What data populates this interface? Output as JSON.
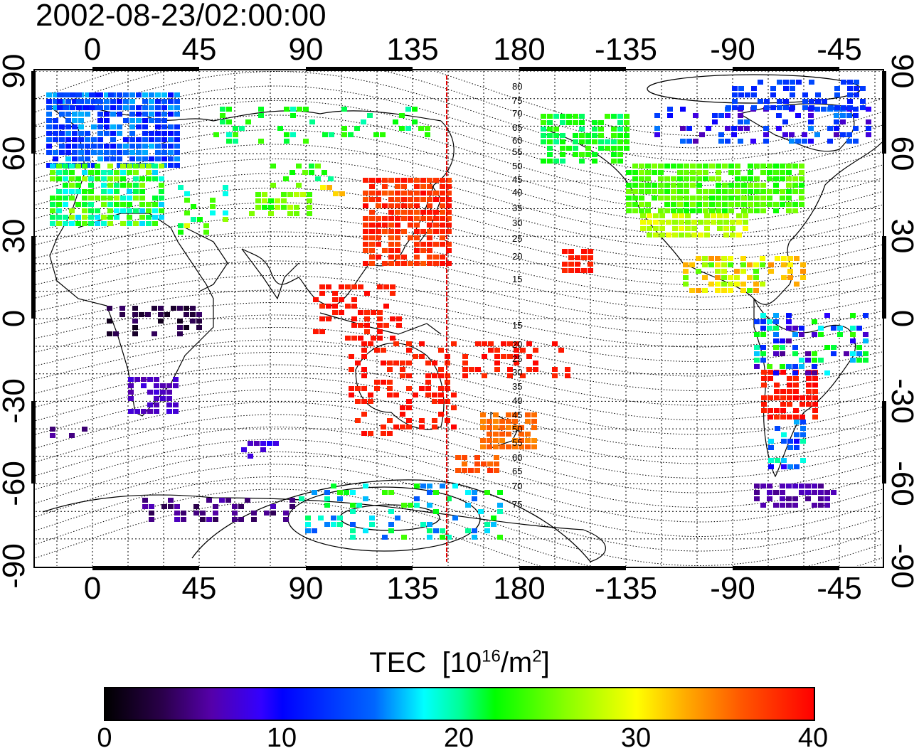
{
  "title": "2002-08-23/02:00:00",
  "x_ticks": [
    "0",
    "45",
    "90",
    "135",
    "180",
    "-135",
    "-90",
    "-45"
  ],
  "y_ticks": [
    "90",
    "60",
    "30",
    "0",
    "-30",
    "-60",
    "-90"
  ],
  "contour_labels_north": [
    "80",
    "75",
    "70",
    "65",
    "60",
    "55",
    "50",
    "45",
    "40",
    "35",
    "30",
    "25",
    "20",
    "15"
  ],
  "contour_labels_south": [
    "15",
    "20",
    "25",
    "30",
    "35",
    "40",
    "45",
    "50",
    "55",
    "60",
    "65",
    "70",
    "75"
  ],
  "colorbar": {
    "title": "TEC",
    "unit_prefix": "[10",
    "unit_exp": "16",
    "unit_mid": "/m",
    "unit_exp2": "2",
    "unit_suffix": "]",
    "ticks": [
      "0",
      "10",
      "20",
      "30",
      "40"
    ]
  },
  "colors": {
    "meridian_line": "#e00000",
    "grid": "#000000"
  }
}
